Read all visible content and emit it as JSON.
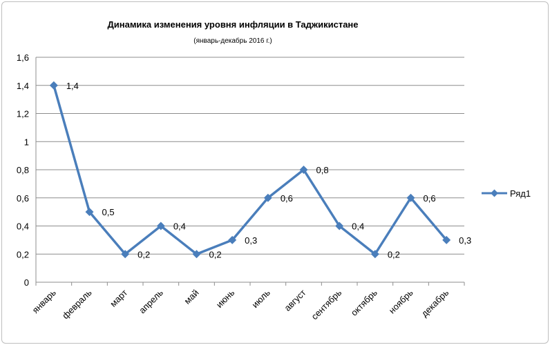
{
  "chart_data": {
    "type": "line",
    "title": "Динамика  изменения  уровня  инфляции  в Таджикистане",
    "subtitle": "(январь-декабрь 2016 г.)",
    "categories": [
      "январь",
      "февраль",
      "март",
      "апрель",
      "май",
      "июнь",
      "июль",
      "август",
      "сентябрь",
      "октябрь",
      "ноябрь",
      "декабрь"
    ],
    "series": [
      {
        "name": "Ряд1",
        "values": [
          1.4,
          0.5,
          0.2,
          0.4,
          0.2,
          0.3,
          0.6,
          0.8,
          0.4,
          0.2,
          0.6,
          0.3
        ],
        "data_labels": [
          "1,4",
          "0,5",
          "0,2",
          "0,4",
          "0,2",
          "0,3",
          "0,6",
          "0,8",
          "0,4",
          "0,2",
          "0,6",
          "0,3"
        ],
        "color": "#4a7ebb"
      }
    ],
    "ylim": [
      0,
      1.6
    ],
    "y_ticks": [
      0,
      0.2,
      0.4,
      0.6,
      0.8,
      1,
      1.2,
      1.4,
      1.6
    ],
    "y_tick_labels": [
      "0",
      "0,2",
      "0,4",
      "0,6",
      "0,8",
      "1",
      "1,2",
      "1,4",
      "1,6"
    ],
    "grid": "horizontal",
    "legend_position": "right",
    "xlabel": "",
    "ylabel": "",
    "gridline_color": "#8c8c8c"
  }
}
